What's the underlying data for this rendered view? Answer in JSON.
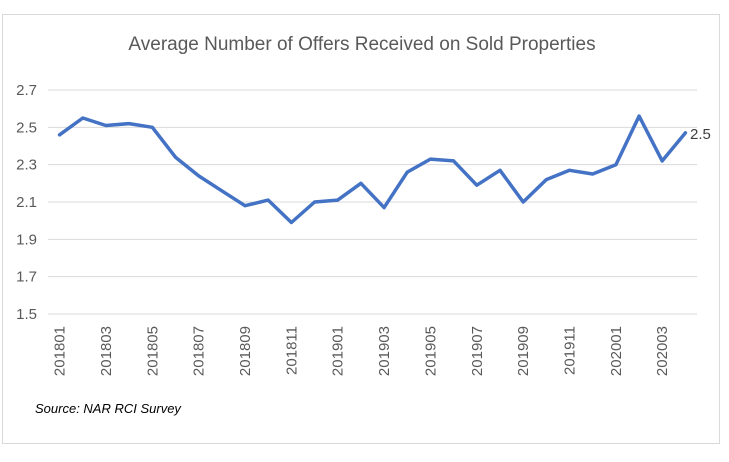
{
  "chart_data": {
    "type": "line",
    "title": "Average Number of Offers Received on Sold Properties",
    "xlabel": "",
    "ylabel": "",
    "ylim": [
      1.5,
      2.7
    ],
    "yticks": [
      "1.5",
      "1.7",
      "1.9",
      "2.1",
      "2.3",
      "2.5",
      "2.7"
    ],
    "grid": true,
    "x": [
      "201801",
      "201802",
      "201803",
      "201804",
      "201805",
      "201806",
      "201807",
      "201808",
      "201809",
      "201810",
      "201811",
      "201812",
      "201901",
      "201902",
      "201903",
      "201904",
      "201905",
      "201906",
      "201907",
      "201908",
      "201909",
      "201910",
      "201911",
      "201912",
      "202001",
      "202002",
      "202003",
      "202004"
    ],
    "xtick_labels": [
      "201801",
      "201803",
      "201805",
      "201807",
      "201809",
      "201811",
      "201901",
      "201903",
      "201905",
      "201907",
      "201909",
      "201911",
      "202001",
      "202003"
    ],
    "series": [
      {
        "color": "#4472c4",
        "values": [
          2.46,
          2.55,
          2.51,
          2.52,
          2.5,
          2.34,
          2.24,
          2.16,
          2.08,
          2.11,
          1.99,
          2.1,
          2.11,
          2.2,
          2.07,
          2.26,
          2.33,
          2.32,
          2.19,
          2.27,
          2.1,
          2.22,
          2.27,
          2.25,
          2.3,
          2.56,
          2.32,
          2.47
        ]
      }
    ],
    "data_label": "2.5",
    "source": "Source: NAR RCI Survey"
  }
}
